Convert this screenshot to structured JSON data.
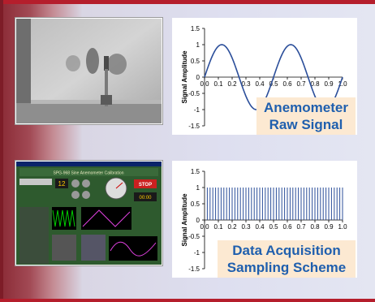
{
  "captions": {
    "raw": [
      "Anemometer",
      "Raw Signal"
    ],
    "daq": [
      "Data Acquisition",
      "Sampling Scheme"
    ]
  },
  "colors": {
    "series": "#2b4e9a",
    "caption_text": "#1f5fae",
    "caption_bg": "#fce9d2",
    "frame": "#b51e2c"
  },
  "ui_screenshot": {
    "title": "SPG-968 Sine Anemometer Calibration",
    "stop_label": "STOP",
    "display_value": "12",
    "clock": "00:00"
  },
  "chart_data": [
    {
      "type": "line",
      "ylabel": "Signal Amplitude",
      "xlim": [
        0,
        1.0
      ],
      "ylim": [
        -1.5,
        1.5
      ],
      "xticks": [
        "0.0",
        "0.1",
        "0.2",
        "0.3",
        "0.4",
        "0.5",
        "0.6",
        "0.7",
        "0.8",
        "0.9",
        "1.0"
      ],
      "yticks": [
        "1.5",
        "1",
        "0.5",
        "0",
        "-0.5",
        "-1",
        "-1.5"
      ],
      "series": [
        {
          "function": "sin(2*pi*2*x)",
          "cycles": 2,
          "amplitude": 1
        }
      ]
    },
    {
      "type": "bar",
      "ylabel": "Signal Amplitude",
      "xlim": [
        0,
        1.0
      ],
      "ylim": [
        -1.5,
        1.5
      ],
      "xticks": [
        "0.0",
        "0.1",
        "0.2",
        "0.3",
        "0.4",
        "0.5",
        "0.6",
        "0.7",
        "0.8",
        "0.9",
        "1.0"
      ],
      "yticks": [
        "1.5",
        "1",
        "0.5",
        "0",
        "-0.5",
        "-1",
        "-1.5"
      ],
      "series": [
        {
          "sample_interval": 0.02,
          "value": 1,
          "x_start": 0.02,
          "x_end": 1.0
        }
      ]
    }
  ]
}
